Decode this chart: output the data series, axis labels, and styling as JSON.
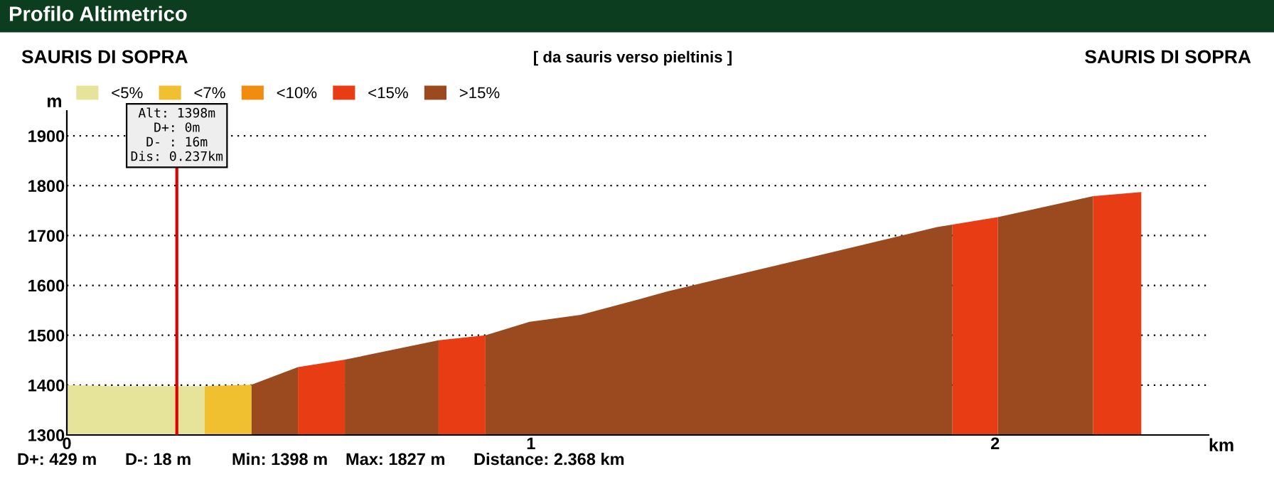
{
  "chart_data": {
    "type": "area",
    "title": "Profilo Altimetrico",
    "subtitle": "[ da sauris verso pieltinis ]",
    "xlabel": "km",
    "ylabel": "m",
    "series": [
      {
        "name": "<5%",
        "color": "#e6e49a",
        "x": [
          0,
          0.1,
          0.297
        ],
        "values": [
          1400,
          1398,
          1398
        ]
      },
      {
        "name": "<7%",
        "color": "#f0c030",
        "x": [
          0.297,
          0.398
        ],
        "values": [
          1398,
          1401
        ]
      },
      {
        "name": "<10%",
        "color": "#f08c10"
      },
      {
        "name": "<15%",
        "color": "#e83c14",
        "x": [
          0.498,
          0.599,
          0.65,
          0.801,
          0.902,
          0.95,
          1.908,
          2.006,
          2.1,
          2.211,
          2.315
        ],
        "values": [
          1436,
          1451,
          null,
          1490,
          1500,
          null,
          1722,
          1737,
          null,
          1779,
          1787
        ]
      },
      {
        "name": ">15%",
        "color": "#9a4a1e",
        "x": [
          0.398,
          0.498,
          0.55,
          0.599,
          0.801,
          0.85,
          0.902,
          0.997,
          1.107,
          1.232,
          1.294,
          1.651,
          1.875,
          1.908,
          1.95,
          2.006,
          2.211
        ],
        "values": [
          1401,
          1436,
          null,
          1451,
          1490,
          null,
          1500,
          1527,
          1541,
          1572,
          1588,
          1667,
          1717,
          1722,
          null,
          1737,
          1779
        ]
      }
    ],
    "xlim": [
      0,
      2.46
    ],
    "ylim": [
      1300,
      1950
    ],
    "xticks": [
      0,
      1,
      2
    ],
    "yticks": [
      1300,
      1400,
      1500,
      1600,
      1700,
      1800,
      1900
    ],
    "grid": "y",
    "legend": "top left",
    "ref_lines": [
      {
        "axis": "x",
        "value": 0.237,
        "label": "Alt: 1398m\nD+: 0m\nD- : 16m\nDis: 0.237km",
        "color": "#e00000"
      }
    ],
    "annotations": [
      "SAURIS DI SOPRA",
      "SAURIS DI SOPRA",
      "D+: 429 m",
      "D-: 18 m",
      "Min: 1398 m",
      "Max: 1827 m",
      "Distance: 2.368 km"
    ]
  }
}
